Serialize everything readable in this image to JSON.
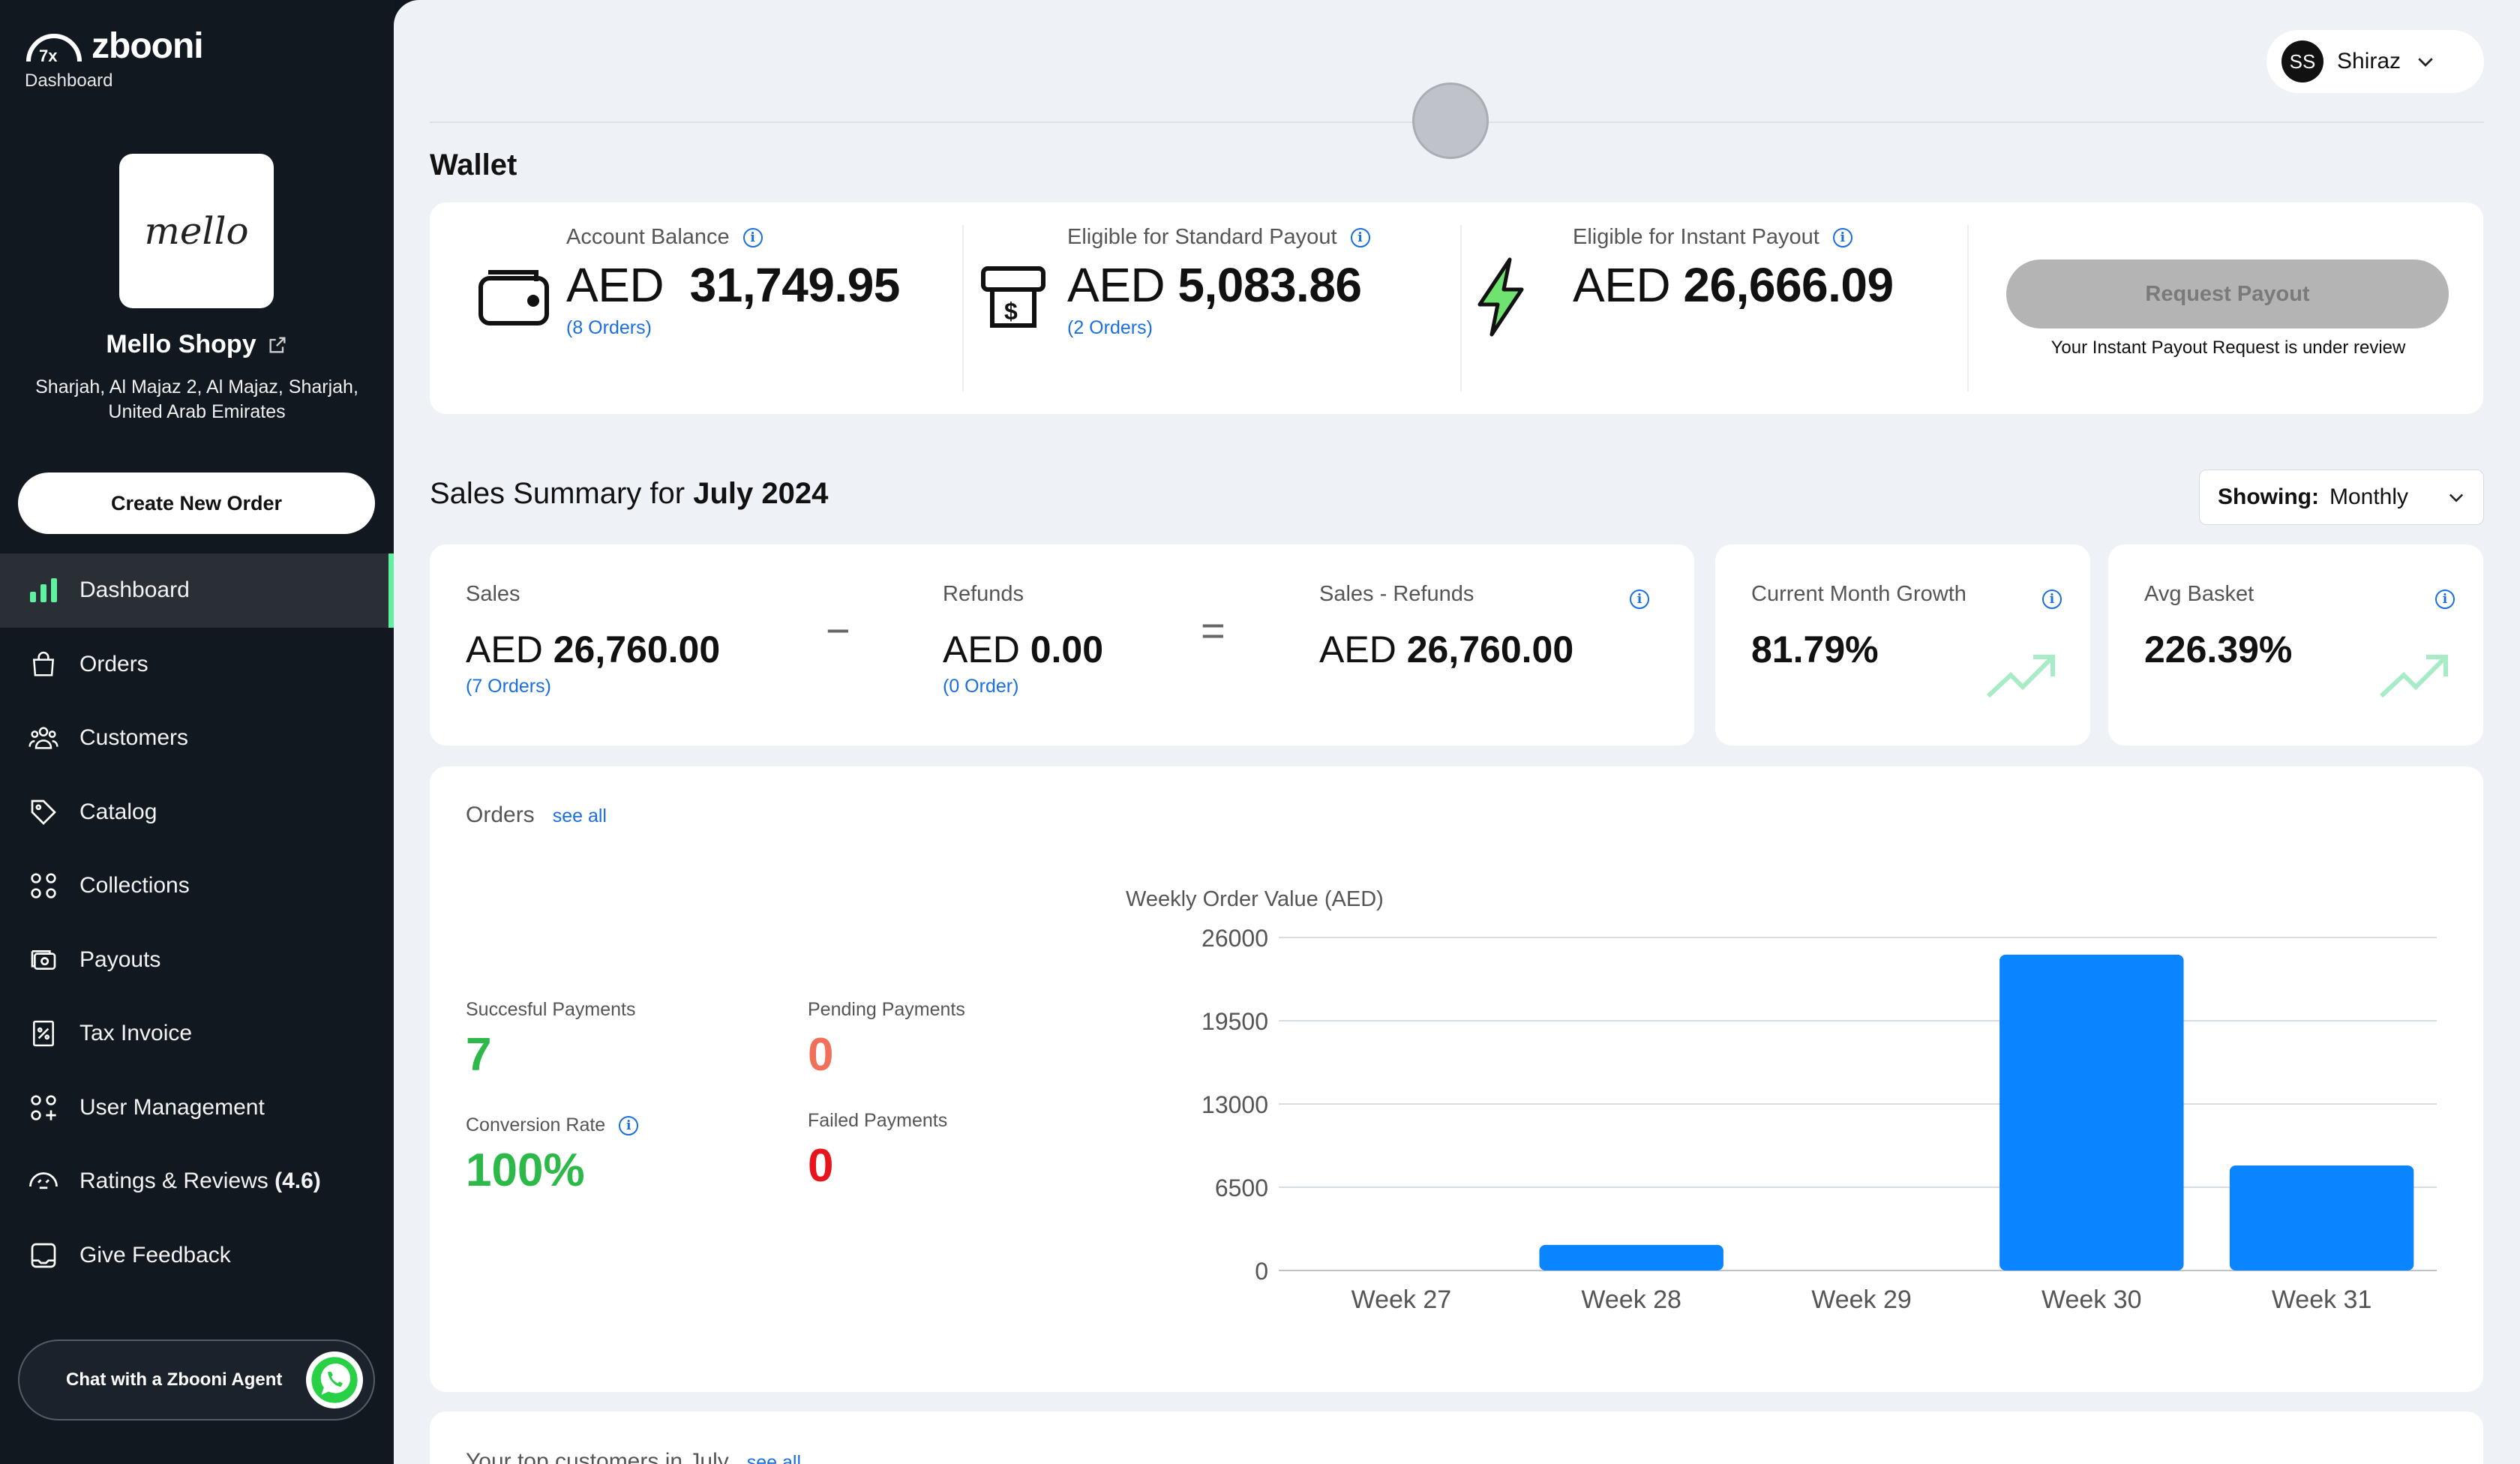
{
  "sidebar": {
    "brand": "zbooni",
    "brand_sub": "Dashboard",
    "store_avatar_text": "mello",
    "store_name": "Mello Shopy",
    "store_address": "Sharjah, Al Majaz 2, Al Majaz, Sharjah, United Arab Emirates",
    "create_order_label": "Create New Order",
    "nav": [
      {
        "label": "Dashboard",
        "icon": "bar-chart-icon"
      },
      {
        "label": "Orders",
        "icon": "shopping-bag-icon"
      },
      {
        "label": "Customers",
        "icon": "users-icon"
      },
      {
        "label": "Catalog",
        "icon": "tag-icon"
      },
      {
        "label": "Collections",
        "icon": "grid-icon"
      },
      {
        "label": "Payouts",
        "icon": "payout-icon"
      },
      {
        "label": "Tax Invoice",
        "icon": "invoice-icon"
      },
      {
        "label": "User Management",
        "icon": "user-management-icon"
      },
      {
        "label": "Ratings & Reviews",
        "rating": "(4.6)",
        "icon": "rating-icon"
      },
      {
        "label": "Give Feedback",
        "icon": "feedback-icon"
      }
    ],
    "chat_label": "Chat with a Zbooni Agent"
  },
  "header": {
    "user_initials": "SS",
    "user_name": "Shiraz"
  },
  "wallet": {
    "title": "Wallet",
    "account_balance": {
      "label": "Account Balance",
      "currency": "AED",
      "amount": "31,749.95",
      "orders": "(8 Orders)"
    },
    "standard_payout": {
      "label": "Eligible for Standard Payout",
      "currency": "AED",
      "amount": "5,083.86",
      "orders": "(2 Orders)"
    },
    "instant_payout": {
      "label": "Eligible for Instant Payout",
      "currency": "AED",
      "amount": "26,666.09"
    },
    "request_payout_label": "Request Payout",
    "payout_note": "Your Instant Payout Request is under review"
  },
  "sales_summary": {
    "title_prefix": "Sales Summary for",
    "period": "July 2024",
    "showing_label": "Showing:",
    "showing_value": "Monthly",
    "sales": {
      "label": "Sales",
      "currency": "AED",
      "amount": "26,760.00",
      "orders": "(7 Orders)"
    },
    "minus": "−",
    "refunds": {
      "label": "Refunds",
      "currency": "AED",
      "amount": "0.00",
      "orders": "(0 Order)"
    },
    "equals": "=",
    "net": {
      "label": "Sales - Refunds",
      "currency": "AED",
      "amount": "26,760.00"
    },
    "growth": {
      "label": "Current Month Growth",
      "value": "81.79%"
    },
    "avg_basket": {
      "label": "Avg Basket",
      "value": "226.39%"
    }
  },
  "orders": {
    "title": "Orders",
    "see_all": "see all",
    "successful": {
      "label": "Succesful Payments",
      "value": "7"
    },
    "pending": {
      "label": "Pending Payments",
      "value": "0"
    },
    "conversion": {
      "label": "Conversion Rate",
      "value": "100%"
    },
    "failed": {
      "label": "Failed Payments",
      "value": "0"
    }
  },
  "chart_data": {
    "type": "bar",
    "title": "Weekly Order Value (AED)",
    "categories": [
      "Week 27",
      "Week 28",
      "Week 29",
      "Week 30",
      "Week 31"
    ],
    "values": [
      0,
      2000,
      0,
      24660,
      8200
    ],
    "yticks": [
      0,
      6500,
      13000,
      19500,
      26000
    ],
    "ylim": [
      0,
      26000
    ],
    "grid": true,
    "bar_color": "#0a84ff"
  },
  "top_customers": {
    "title": "Your top customers in July",
    "see_all": "see all"
  },
  "colors": {
    "accent_blue": "#1a6fe0",
    "success_green": "#2db84a",
    "danger_red": "#e8141c",
    "pending_salmon": "#f0705a"
  }
}
